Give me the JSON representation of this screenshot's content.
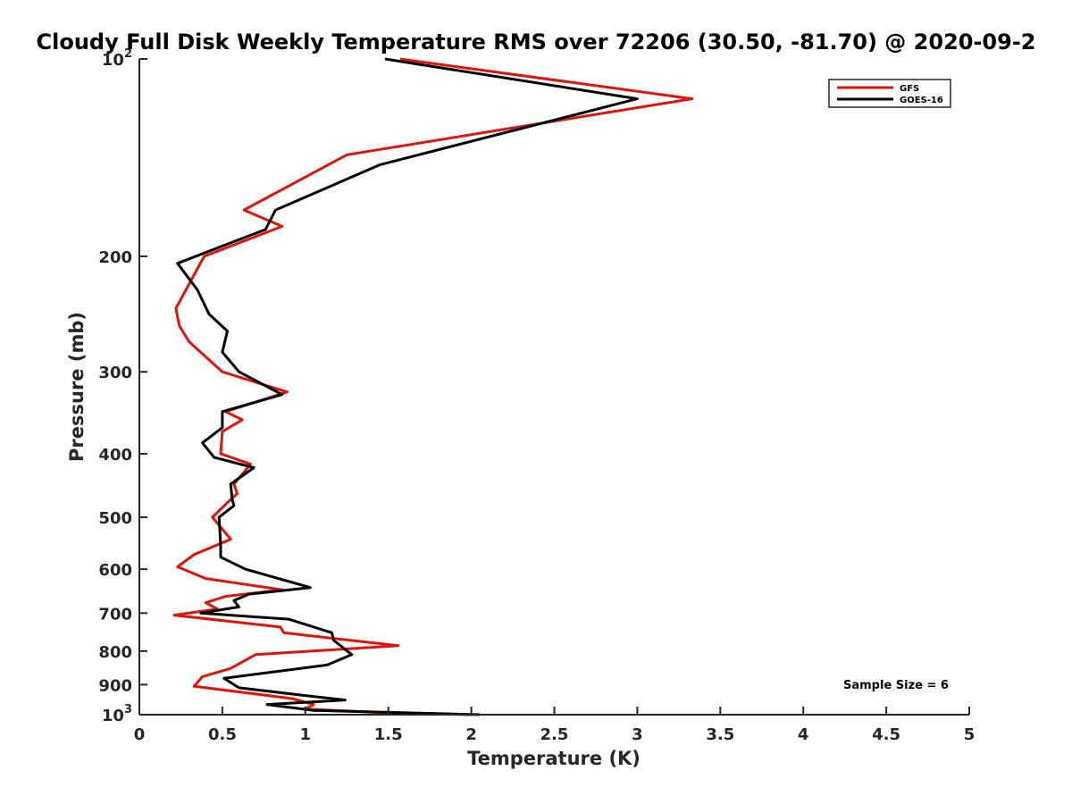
{
  "chart_data": {
    "type": "line",
    "title": "Cloudy Full Disk Weekly Temperature RMS over 72206 (30.50, -81.70) @ 2020-09-2",
    "xlabel": "Temperature (K)",
    "ylabel": "Pressure (mb)",
    "xlim": [
      0,
      5
    ],
    "ylim": [
      100,
      1000
    ],
    "yscale": "log",
    "y_reversed": true,
    "grid": false,
    "legend_position": "top-right",
    "x_ticks": [
      "0",
      "0.5",
      "1",
      "1.5",
      "2",
      "2.5",
      "3",
      "3.5",
      "4",
      "4.5",
      "5"
    ],
    "y_ticks": [
      {
        "value": 100,
        "base": "10",
        "exp": "2"
      },
      {
        "value": 200,
        "label": "200"
      },
      {
        "value": 300,
        "label": "300"
      },
      {
        "value": 400,
        "label": "400"
      },
      {
        "value": 500,
        "label": "500"
      },
      {
        "value": 600,
        "label": "600"
      },
      {
        "value": 700,
        "label": "700"
      },
      {
        "value": 800,
        "label": "800"
      },
      {
        "value": 900,
        "label": "900"
      },
      {
        "value": 1000,
        "base": "10",
        "exp": "3"
      }
    ],
    "annotation": "Sample Size = 6",
    "series": [
      {
        "name": "GFS",
        "color": "#e0140c",
        "points": [
          [
            1.57,
            100
          ],
          [
            3.33,
            115
          ],
          [
            1.25,
            140
          ],
          [
            0.63,
            170
          ],
          [
            0.86,
            180
          ],
          [
            0.39,
            200
          ],
          [
            0.22,
            240
          ],
          [
            0.24,
            255
          ],
          [
            0.3,
            270
          ],
          [
            0.5,
            300
          ],
          [
            0.89,
            322
          ],
          [
            0.52,
            345
          ],
          [
            0.62,
            355
          ],
          [
            0.5,
            370
          ],
          [
            0.49,
            400
          ],
          [
            0.67,
            415
          ],
          [
            0.57,
            445
          ],
          [
            0.59,
            460
          ],
          [
            0.53,
            475
          ],
          [
            0.44,
            500
          ],
          [
            0.55,
            540
          ],
          [
            0.33,
            570
          ],
          [
            0.23,
            595
          ],
          [
            0.4,
            620
          ],
          [
            0.86,
            645
          ],
          [
            0.52,
            660
          ],
          [
            0.4,
            675
          ],
          [
            0.47,
            690
          ],
          [
            0.21,
            705
          ],
          [
            0.85,
            735
          ],
          [
            0.87,
            750
          ],
          [
            1.56,
            785
          ],
          [
            0.7,
            810
          ],
          [
            0.55,
            850
          ],
          [
            0.38,
            875
          ],
          [
            0.33,
            905
          ],
          [
            0.92,
            945
          ],
          [
            1.05,
            965
          ],
          [
            1.0,
            980
          ],
          [
            1.52,
            995
          ],
          [
            2.0,
            1000
          ]
        ]
      },
      {
        "name": "GOES-16",
        "color": "#000000",
        "points": [
          [
            1.48,
            100
          ],
          [
            3.0,
            115
          ],
          [
            1.45,
            145
          ],
          [
            0.82,
            170
          ],
          [
            0.76,
            182
          ],
          [
            0.23,
            205
          ],
          [
            0.35,
            225
          ],
          [
            0.42,
            245
          ],
          [
            0.53,
            260
          ],
          [
            0.5,
            280
          ],
          [
            0.6,
            300
          ],
          [
            0.86,
            325
          ],
          [
            0.5,
            345
          ],
          [
            0.5,
            365
          ],
          [
            0.38,
            385
          ],
          [
            0.45,
            405
          ],
          [
            0.69,
            420
          ],
          [
            0.55,
            445
          ],
          [
            0.56,
            470
          ],
          [
            0.57,
            480
          ],
          [
            0.48,
            500
          ],
          [
            0.49,
            550
          ],
          [
            0.49,
            575
          ],
          [
            0.64,
            600
          ],
          [
            1.03,
            640
          ],
          [
            0.66,
            655
          ],
          [
            0.57,
            670
          ],
          [
            0.6,
            685
          ],
          [
            0.37,
            700
          ],
          [
            0.9,
            715
          ],
          [
            1.16,
            750
          ],
          [
            1.17,
            770
          ],
          [
            1.28,
            810
          ],
          [
            1.13,
            840
          ],
          [
            0.51,
            880
          ],
          [
            0.6,
            910
          ],
          [
            1.0,
            935
          ],
          [
            1.24,
            950
          ],
          [
            0.77,
            965
          ],
          [
            1.05,
            985
          ],
          [
            2.05,
            1000
          ]
        ]
      }
    ]
  }
}
